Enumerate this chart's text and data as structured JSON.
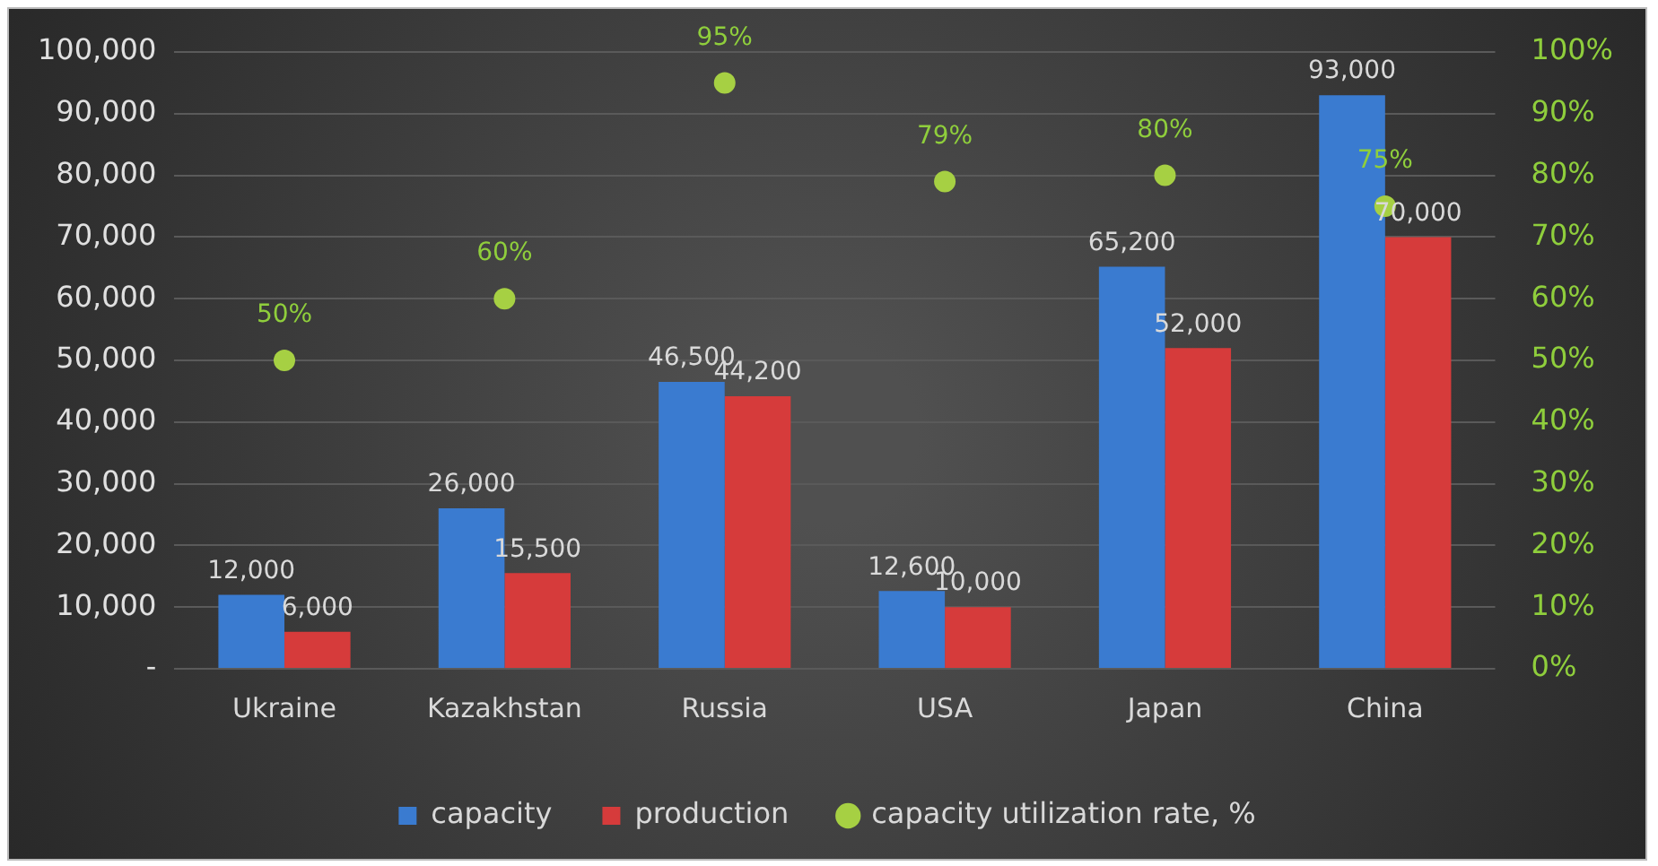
{
  "chart_data": {
    "type": "bar",
    "categories": [
      "Ukraine",
      "Kazakhstan",
      "Russia",
      "USA",
      "Japan",
      "China"
    ],
    "series": [
      {
        "name": "capacity",
        "color": "#3a7bd0",
        "values": [
          12000,
          26000,
          46500,
          12600,
          65200,
          93000
        ],
        "value_labels": [
          "12,000",
          "26,000",
          "46,500",
          "12,600",
          "65,200",
          "93,000"
        ]
      },
      {
        "name": "production",
        "color": "#d63b3b",
        "values": [
          6000,
          15500,
          44200,
          10000,
          52000,
          70000
        ],
        "value_labels": [
          "6,000",
          "15,500",
          "44,200",
          "10,000",
          "52,000",
          "70,000"
        ]
      },
      {
        "name": "capacity utilization rate, %",
        "type": "scatter",
        "axis": "y2",
        "color": "#a6d043",
        "values": [
          50,
          60,
          95,
          79,
          80,
          75
        ],
        "value_labels": [
          "50%",
          "60%",
          "95%",
          "79%",
          "80%",
          "75%"
        ]
      }
    ],
    "ylim": [
      0,
      100000
    ],
    "yticks": [
      {
        "value": 0,
        "label": "-"
      },
      {
        "value": 10000,
        "label": "10,000"
      },
      {
        "value": 20000,
        "label": "20,000"
      },
      {
        "value": 30000,
        "label": "30,000"
      },
      {
        "value": 40000,
        "label": "40,000"
      },
      {
        "value": 50000,
        "label": "50,000"
      },
      {
        "value": 60000,
        "label": "60,000"
      },
      {
        "value": 70000,
        "label": "70,000"
      },
      {
        "value": 80000,
        "label": "80,000"
      },
      {
        "value": 90000,
        "label": "90,000"
      },
      {
        "value": 100000,
        "label": "100,000"
      }
    ],
    "y2lim": [
      0,
      100
    ],
    "y2ticks": [
      {
        "value": 0,
        "label": "0%"
      },
      {
        "value": 10,
        "label": "10%"
      },
      {
        "value": 20,
        "label": "20%"
      },
      {
        "value": 30,
        "label": "30%"
      },
      {
        "value": 40,
        "label": "40%"
      },
      {
        "value": 50,
        "label": "50%"
      },
      {
        "value": 60,
        "label": "60%"
      },
      {
        "value": 70,
        "label": "70%"
      },
      {
        "value": 80,
        "label": "80%"
      },
      {
        "value": 90,
        "label": "90%"
      },
      {
        "value": 100,
        "label": "100%"
      }
    ],
    "grid": "y",
    "legend": "bottom",
    "marker": "circle"
  }
}
